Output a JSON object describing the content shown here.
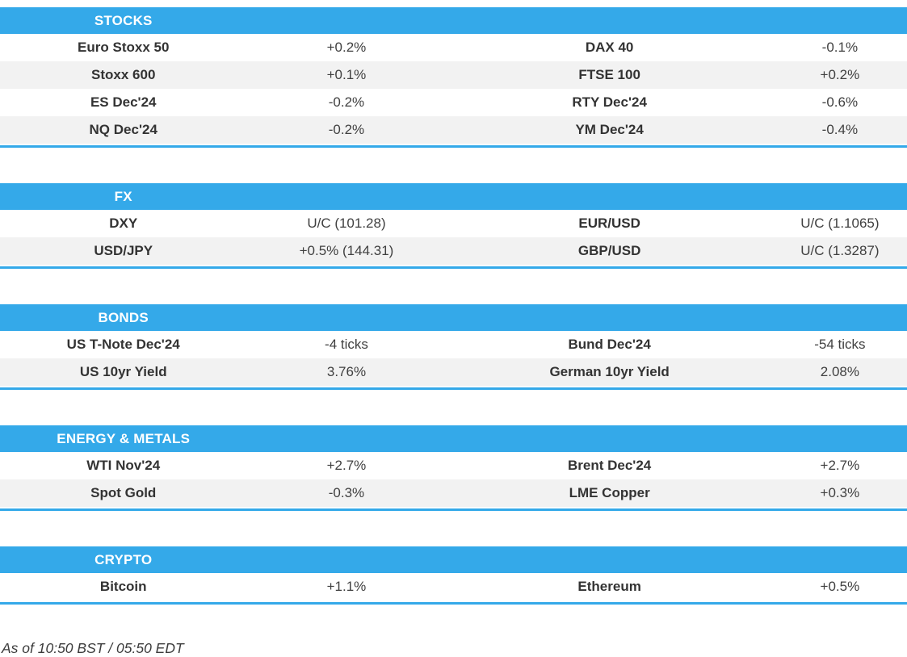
{
  "accent_color": "#34A9E9",
  "stripe_color": "#F2F2F2",
  "sections": [
    {
      "title": "STOCKS",
      "rows": [
        {
          "l_name": "Euro Stoxx 50",
          "l_value": "+0.2%",
          "r_name": "DAX 40",
          "r_value": "-0.1%"
        },
        {
          "l_name": "Stoxx 600",
          "l_value": "+0.1%",
          "r_name": "FTSE 100",
          "r_value": "+0.2%"
        },
        {
          "l_name": "ES Dec'24",
          "l_value": "-0.2%",
          "r_name": "RTY Dec'24",
          "r_value": "-0.6%"
        },
        {
          "l_name": "NQ Dec'24",
          "l_value": "-0.2%",
          "r_name": "YM Dec'24",
          "r_value": "-0.4%"
        }
      ]
    },
    {
      "title": "FX",
      "rows": [
        {
          "l_name": "DXY",
          "l_value": "U/C (101.28)",
          "r_name": "EUR/USD",
          "r_value": "U/C (1.1065)"
        },
        {
          "l_name": "USD/JPY",
          "l_value": "+0.5% (144.31)",
          "r_name": "GBP/USD",
          "r_value": "U/C (1.3287)"
        }
      ]
    },
    {
      "title": "BONDS",
      "rows": [
        {
          "l_name": "US T-Note Dec'24",
          "l_value": "-4 ticks",
          "r_name": "Bund Dec'24",
          "r_value": "-54 ticks"
        },
        {
          "l_name": "US 10yr Yield",
          "l_value": "3.76%",
          "r_name": "German 10yr Yield",
          "r_value": "2.08%"
        }
      ]
    },
    {
      "title": "ENERGY & METALS",
      "rows": [
        {
          "l_name": "WTI Nov'24",
          "l_value": "+2.7%",
          "r_name": "Brent Dec'24",
          "r_value": "+2.7%"
        },
        {
          "l_name": "Spot Gold",
          "l_value": "-0.3%",
          "r_name": "LME Copper",
          "r_value": "+0.3%"
        }
      ]
    },
    {
      "title": "CRYPTO",
      "rows": [
        {
          "l_name": "Bitcoin",
          "l_value": "+1.1%",
          "r_name": "Ethereum",
          "r_value": "+0.5%"
        }
      ]
    }
  ],
  "footer": {
    "timestamp": "As of 10:50 BST / 05:50 EDT"
  }
}
